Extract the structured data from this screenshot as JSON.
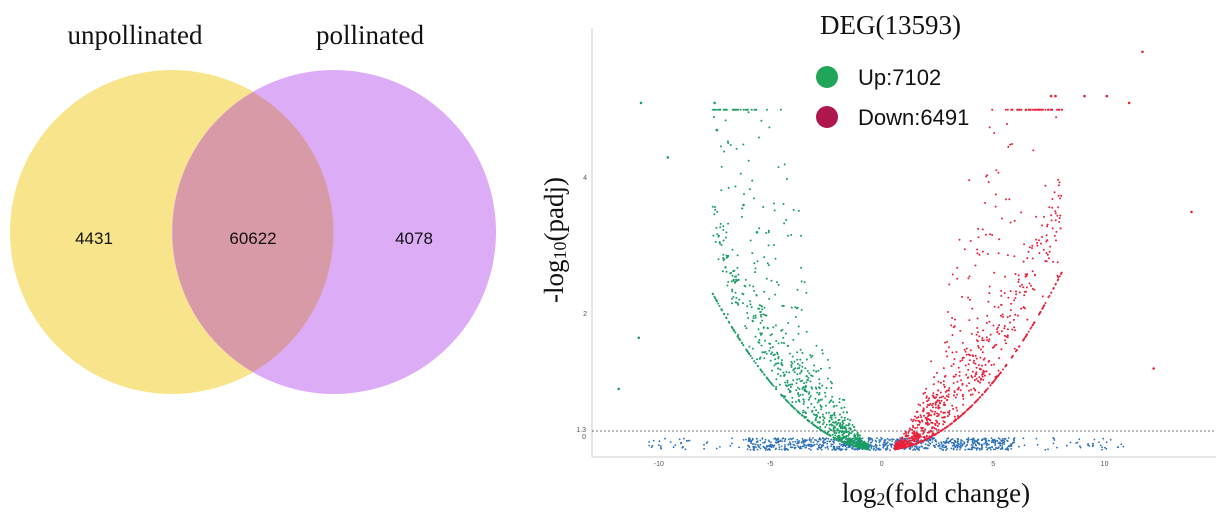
{
  "chart_data": [
    {
      "type": "venn",
      "sets": [
        {
          "name": "unpollinated",
          "color": "#F7E27E",
          "only": "4431"
        },
        {
          "name": "pollinated",
          "color": "#D9A3F5",
          "only": "4078"
        }
      ],
      "intersection": {
        "value": "60622",
        "color": "#D99AA7"
      }
    },
    {
      "type": "scatter",
      "title_main": "DEG",
      "title_count": "(13593)",
      "xlabel_base": "log",
      "xlabel_sub": "2",
      "xlabel_rest": "(fold change)",
      "ylabel_base": "-log",
      "ylabel_sub": "10",
      "ylabel_rest": "(padj)",
      "xlim": [
        -13,
        15
      ],
      "ylim": [
        -0.1,
        6.2
      ],
      "xticks": [
        "-10",
        "-5",
        "0",
        "5",
        "10"
      ],
      "xtick_values": [
        -10,
        -5,
        0,
        5,
        10
      ],
      "yticks": [
        "2",
        "4"
      ],
      "ytick_values": [
        2,
        4
      ],
      "threshold_labels": [
        "1.3",
        "0"
      ],
      "legend": [
        {
          "label": "Up:7102",
          "color": "#1FA65A"
        },
        {
          "label": "Down:6491",
          "color": "#B0164E"
        }
      ],
      "point_colors": {
        "up_side": "#E8203A",
        "down_side": "#1A9E63",
        "ns": "#2C6FB8"
      },
      "outliers": [
        [
          11.7,
          5.85
        ],
        [
          13.9,
          3.5
        ],
        [
          -10.8,
          5.1
        ],
        [
          -7.5,
          5.1
        ],
        [
          -7.4,
          4.7
        ],
        [
          -9.6,
          4.3
        ],
        [
          7.6,
          5.2
        ],
        [
          7.8,
          5.2
        ],
        [
          9.1,
          5.2
        ],
        [
          10.1,
          5.2
        ],
        [
          11.1,
          5.1
        ],
        [
          -6.2,
          3.6
        ],
        [
          -5.6,
          3.2
        ],
        [
          -10.9,
          1.65
        ],
        [
          -11.8,
          0.9
        ],
        [
          12.2,
          1.2
        ]
      ]
    }
  ]
}
